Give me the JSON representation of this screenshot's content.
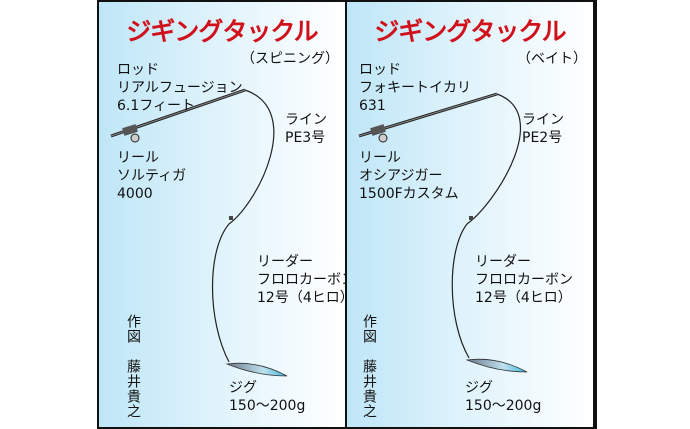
{
  "panels": [
    {
      "title": "ジギングタックル",
      "subtitle": "（スピニング）",
      "rod": [
        "ロッド",
        "リアルフュージョン",
        "6.1フィート"
      ],
      "line": [
        "ライン",
        "PE3号"
      ],
      "reel": [
        "リール",
        "ソルティガ",
        "4000"
      ],
      "leader": [
        "リーダー",
        "フロロカーボン",
        "12号（4ヒロ）"
      ],
      "jig": [
        "ジグ",
        "150〜200g"
      ],
      "credit": "作図　藤井貴之"
    },
    {
      "title": "ジギングタックル",
      "subtitle": "（ベイト）",
      "rod": [
        "ロッド",
        "フォキートイカリ",
        "631"
      ],
      "line": [
        "ライン",
        "PE2号"
      ],
      "reel": [
        "リール",
        "オシアジガー",
        "1500Fカスタム"
      ],
      "leader": [
        "リーダー",
        "フロロカーボン",
        "12号（4ヒロ）"
      ],
      "jig": [
        "ジグ",
        "150〜200g"
      ],
      "credit": "作図　藤井貴之"
    }
  ]
}
